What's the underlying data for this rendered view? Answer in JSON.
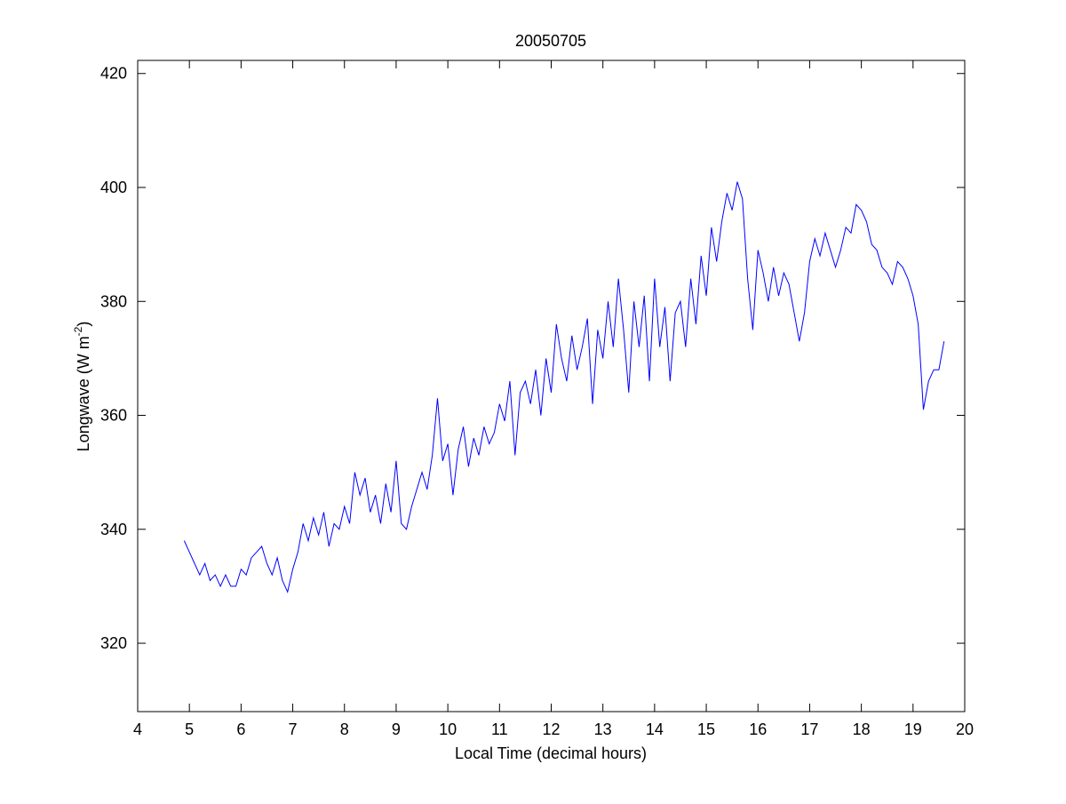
{
  "chart_data": {
    "type": "line",
    "title": "20050705",
    "xlabel": "Local Time (decimal hours)",
    "ylabel": {
      "text": "Longwave (W m",
      "superscript": "-2",
      "suffix": ")"
    },
    "color": "#0000ff",
    "xlim": [
      4,
      20
    ],
    "xticks": [
      4,
      5,
      6,
      7,
      8,
      9,
      10,
      11,
      12,
      13,
      14,
      15,
      16,
      17,
      18,
      19,
      20
    ],
    "ylim": [
      308,
      422.3
    ],
    "yticks": [
      320,
      340,
      360,
      380,
      400,
      420
    ],
    "x": [
      4.9,
      5.0,
      5.1,
      5.2,
      5.3,
      5.4,
      5.5,
      5.6,
      5.7,
      5.8,
      5.9,
      6.0,
      6.1,
      6.2,
      6.3,
      6.4,
      6.5,
      6.6,
      6.7,
      6.8,
      6.9,
      7.0,
      7.1,
      7.2,
      7.3,
      7.4,
      7.5,
      7.6,
      7.7,
      7.8,
      7.9,
      8.0,
      8.1,
      8.2,
      8.3,
      8.4,
      8.5,
      8.6,
      8.7,
      8.8,
      8.9,
      9.0,
      9.1,
      9.2,
      9.3,
      9.4,
      9.5,
      9.6,
      9.7,
      9.8,
      9.9,
      10.0,
      10.1,
      10.2,
      10.3,
      10.4,
      10.5,
      10.6,
      10.7,
      10.8,
      10.9,
      11.0,
      11.1,
      11.2,
      11.3,
      11.4,
      11.5,
      11.6,
      11.7,
      11.8,
      11.9,
      12.0,
      12.1,
      12.2,
      12.3,
      12.4,
      12.5,
      12.6,
      12.7,
      12.8,
      12.9,
      13.0,
      13.1,
      13.2,
      13.3,
      13.4,
      13.5,
      13.6,
      13.7,
      13.8,
      13.9,
      14.0,
      14.1,
      14.2,
      14.3,
      14.4,
      14.5,
      14.6,
      14.7,
      14.8,
      14.9,
      15.0,
      15.1,
      15.2,
      15.3,
      15.4,
      15.5,
      15.6,
      15.7,
      15.8,
      15.9,
      16.0,
      16.1,
      16.2,
      16.3,
      16.4,
      16.5,
      16.6,
      16.7,
      16.8,
      16.9,
      17.0,
      17.1,
      17.2,
      17.3,
      17.4,
      17.5,
      17.6,
      17.7,
      17.8,
      17.9,
      18.0,
      18.1,
      18.2,
      18.3,
      18.4,
      18.5,
      18.6,
      18.7,
      18.8,
      18.9,
      19.0,
      19.1,
      19.2,
      19.3,
      19.4,
      19.5,
      19.6
    ],
    "values": [
      338,
      336,
      334,
      332,
      334,
      331,
      332,
      330,
      332,
      330,
      330,
      333,
      332,
      335,
      336,
      337,
      334,
      332,
      335,
      331,
      329,
      333,
      336,
      341,
      338,
      342,
      339,
      343,
      337,
      341,
      340,
      344,
      341,
      350,
      346,
      349,
      343,
      346,
      341,
      348,
      343,
      352,
      341,
      340,
      344,
      347,
      350,
      347,
      353,
      363,
      352,
      355,
      346,
      354,
      358,
      351,
      356,
      353,
      358,
      355,
      357,
      362,
      359,
      366,
      353,
      364,
      366,
      362,
      368,
      360,
      370,
      364,
      376,
      370,
      366,
      374,
      368,
      372,
      377,
      362,
      375,
      370,
      380,
      372,
      384,
      375,
      364,
      380,
      372,
      381,
      366,
      384,
      372,
      379,
      366,
      378,
      380,
      372,
      384,
      376,
      388,
      381,
      393,
      387,
      394,
      399,
      396,
      401,
      398,
      384,
      375,
      389,
      385,
      380,
      386,
      381,
      385,
      383,
      378,
      373,
      378,
      387,
      391,
      388,
      392,
      389,
      386,
      389,
      393,
      392,
      397,
      396,
      394,
      390,
      389,
      386,
      385,
      383,
      387,
      386,
      384,
      381,
      376,
      361,
      366,
      368,
      368,
      373
    ]
  }
}
